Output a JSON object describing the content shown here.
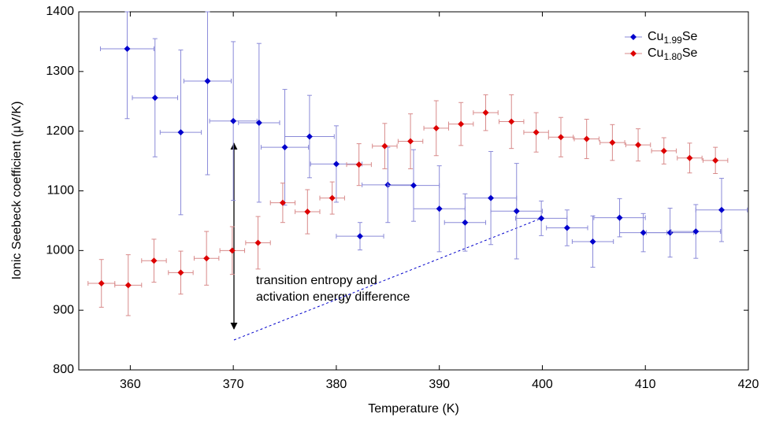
{
  "chart_data": {
    "type": "scatter",
    "xlabel": "Temperature (K)",
    "ylabel": "Ionic Seebeck coefficient (μV/K)",
    "xlim": [
      355,
      420
    ],
    "xticks": [
      360,
      370,
      380,
      390,
      400,
      410,
      420
    ],
    "ylim": [
      800,
      1400
    ],
    "yticks": [
      800,
      900,
      1000,
      1100,
      1200,
      1300,
      1400
    ],
    "legend": "upper right",
    "annotation": [
      "transition entropy and",
      "activation energy difference"
    ],
    "series": [
      {
        "name": "Cu1.99Se",
        "color": "#0000cc",
        "error_color": "#8a8ad8",
        "x": [
          359.7,
          362.4,
          364.9,
          367.5,
          370.0,
          372.5,
          375.0,
          377.4,
          380.0,
          382.3,
          385.0,
          387.5,
          390.0,
          392.5,
          395.0,
          397.5,
          399.9,
          402.4,
          404.9,
          407.5,
          409.8,
          412.4,
          414.9,
          417.4
        ],
        "values": [
          1338,
          1256,
          1198,
          1284,
          1217,
          1214,
          1173,
          1191,
          1145,
          1024,
          1110,
          1109,
          1070,
          1047,
          1088,
          1066,
          1054,
          1038,
          1015,
          1055,
          1030,
          1030,
          1032,
          1068
        ],
        "x_err": [
          2.6,
          2.2,
          2.0,
          2.3,
          2.3,
          2.0,
          2.3,
          2.4,
          2.5,
          2.3,
          2.5,
          2.5,
          2.5,
          2.0,
          2.5,
          2.5,
          2.5,
          2.0,
          2.0,
          2.5,
          2.3,
          2.3,
          2.4,
          2.5
        ],
        "y_err": [
          117,
          99,
          138,
          157,
          133,
          133,
          97,
          69,
          64,
          23,
          63,
          60,
          72,
          48,
          78,
          80,
          29,
          30,
          43,
          32,
          32,
          41,
          45,
          53
        ]
      },
      {
        "name": "Cu1.80Se",
        "color": "#dd0000",
        "error_color": "#d88a8a",
        "x": [
          357.2,
          359.8,
          362.3,
          364.9,
          367.4,
          369.9,
          372.4,
          374.8,
          377.2,
          379.6,
          382.2,
          384.7,
          387.2,
          389.7,
          392.1,
          394.5,
          397.0,
          399.4,
          401.8,
          404.3,
          406.8,
          409.3,
          411.8,
          414.3,
          416.8
        ],
        "values": [
          945,
          942,
          983,
          963,
          987,
          1000,
          1013,
          1080,
          1065,
          1088,
          1144,
          1175,
          1183,
          1205,
          1212,
          1231,
          1216,
          1198,
          1190,
          1187,
          1181,
          1177,
          1167,
          1155,
          1151
        ],
        "x_err": [
          1.3,
          1.3,
          1.2,
          1.2,
          1.2,
          1.2,
          1.2,
          1.2,
          1.2,
          1.2,
          1.2,
          1.2,
          1.2,
          1.2,
          1.2,
          1.2,
          1.2,
          1.2,
          1.2,
          1.2,
          1.2,
          1.2,
          1.2,
          1.2,
          1.2
        ],
        "y_err": [
          40,
          51,
          36,
          36,
          45,
          40,
          44,
          33,
          37,
          27,
          35,
          38,
          46,
          46,
          36,
          30,
          45,
          33,
          33,
          33,
          30,
          27,
          22,
          25,
          22
        ]
      }
    ]
  }
}
